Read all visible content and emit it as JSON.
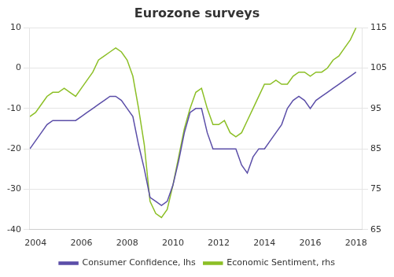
{
  "chart_data": {
    "type": "line",
    "title": "Eurozone surveys",
    "x": [
      2003.75,
      2004.0,
      2004.25,
      2004.5,
      2004.75,
      2005.0,
      2005.25,
      2005.5,
      2005.75,
      2006.0,
      2006.25,
      2006.5,
      2006.75,
      2007.0,
      2007.25,
      2007.5,
      2007.75,
      2008.0,
      2008.25,
      2008.5,
      2008.75,
      2009.0,
      2009.25,
      2009.5,
      2009.75,
      2010.0,
      2010.25,
      2010.5,
      2010.75,
      2011.0,
      2011.25,
      2011.5,
      2011.75,
      2012.0,
      2012.25,
      2012.5,
      2012.75,
      2013.0,
      2013.25,
      2013.5,
      2013.75,
      2014.0,
      2014.25,
      2014.5,
      2014.75,
      2015.0,
      2015.25,
      2015.5,
      2015.75,
      2016.0,
      2016.25,
      2016.5,
      2016.75,
      2017.0,
      2017.25,
      2017.5,
      2017.75,
      2018.0
    ],
    "series": [
      {
        "name": "Consumer Confidence, lhs",
        "color": "#5b4ea8",
        "values": [
          -20,
          -18,
          -16,
          -14,
          -13,
          -13,
          -13,
          -13,
          -13,
          -12,
          -11,
          -10,
          -9,
          -8,
          -7,
          -7,
          -8,
          -10,
          -12,
          -19,
          -25,
          -32,
          -33,
          -34,
          -33,
          -29,
          -23,
          -16,
          -11,
          -10,
          -10,
          -16,
          -20,
          -20,
          -20,
          -20,
          -20,
          -24,
          -26,
          -22,
          -20,
          -20,
          -18,
          -16,
          -14,
          -10,
          -8,
          -7,
          -8,
          -10,
          -8,
          -7,
          -6,
          -5,
          -4,
          -3,
          -2,
          -1
        ]
      },
      {
        "name": "Economic Sentiment, rhs",
        "color": "#8cbf26",
        "axis": "y2",
        "values": [
          93,
          94,
          96,
          98,
          99,
          99,
          100,
          99,
          98,
          100,
          102,
          104,
          107,
          108,
          109,
          110,
          109,
          107,
          103,
          95,
          86,
          72,
          69,
          68,
          70,
          76,
          83,
          90,
          95,
          99,
          100,
          95,
          91,
          91,
          92,
          89,
          88,
          89,
          92,
          95,
          98,
          101,
          101,
          102,
          101,
          101,
          103,
          104,
          104,
          103,
          104,
          104,
          105,
          107,
          108,
          110,
          112,
          115
        ]
      }
    ],
    "xlim": [
      2003.75,
      2018.25
    ],
    "xticks": [
      2004,
      2006,
      2008,
      2010,
      2012,
      2014,
      2016,
      2018
    ],
    "ylim": [
      -40,
      10
    ],
    "yticks": [
      -40,
      -30,
      -20,
      -10,
      0,
      10
    ],
    "y2lim": [
      65,
      115
    ],
    "y2ticks": [
      65,
      75,
      85,
      95,
      105,
      115
    ],
    "grid": true,
    "legend": "bottom"
  }
}
